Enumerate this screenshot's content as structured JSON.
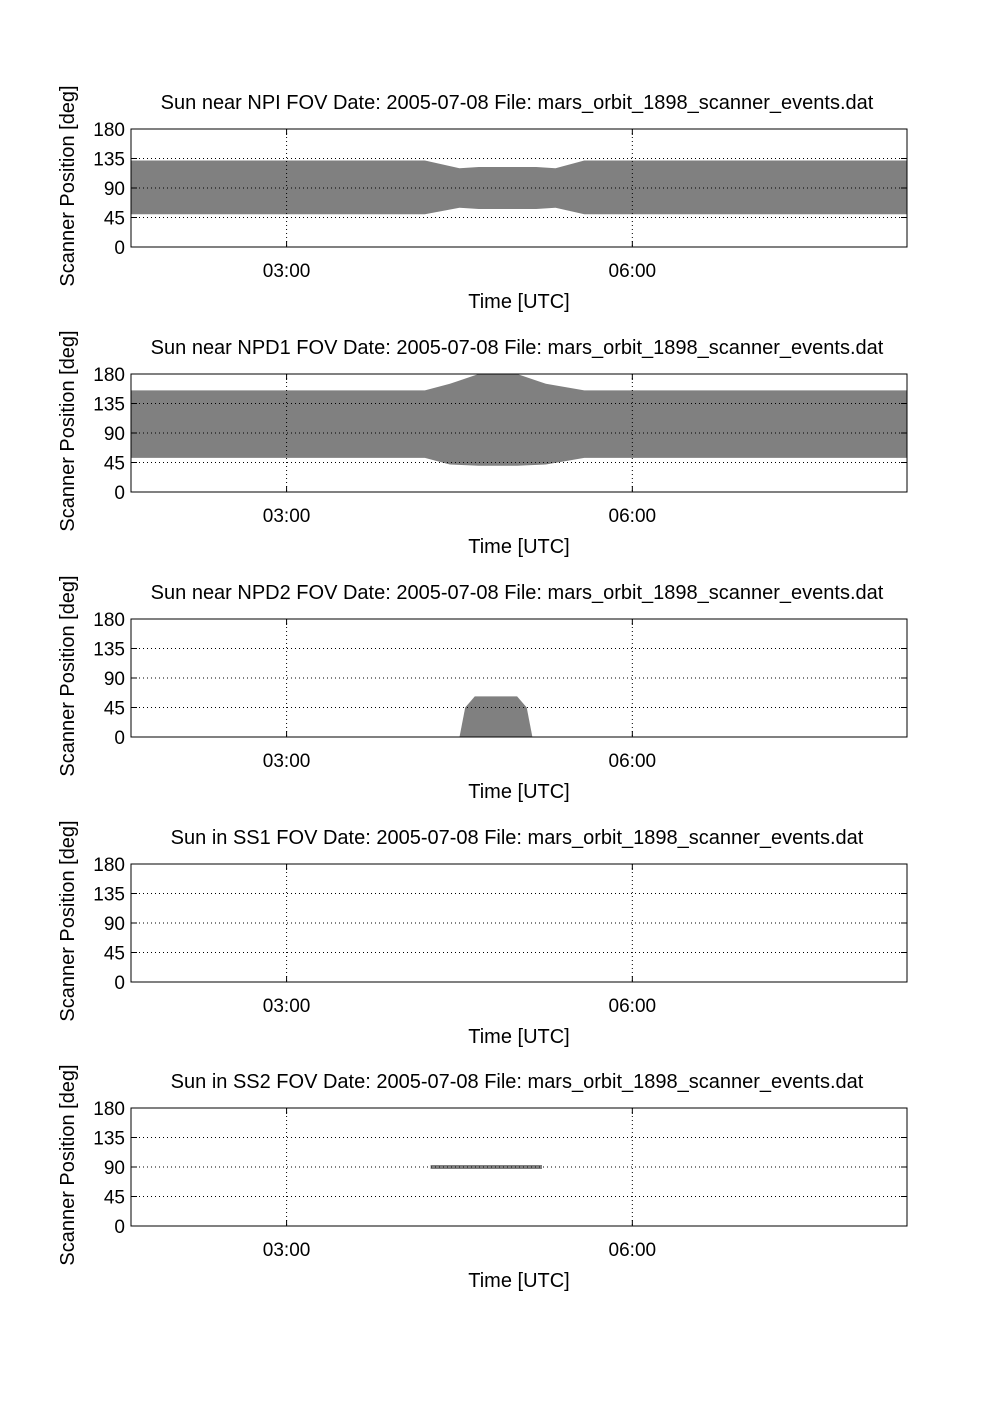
{
  "chart_data": [
    {
      "type": "area",
      "title": "Sun near NPI FOV    Date: 2005-07-08    File: mars_orbit_1898_scanner_events.dat",
      "xlabel": "Time [UTC]",
      "ylabel": "Scanner Position [deg]",
      "xlim": [
        "01:39",
        "08:23"
      ],
      "ylim": [
        0,
        180
      ],
      "xticks": [
        "03:00",
        "06:00"
      ],
      "yticks": [
        "0",
        "45",
        "90",
        "135",
        "180"
      ],
      "grid": true,
      "color": "#808080",
      "series": [
        {
          "x": [
            "01:39",
            "04:12",
            "04:30",
            "04:40",
            "05:10",
            "05:20",
            "05:35",
            "08:23"
          ],
          "lower": [
            50,
            50,
            60,
            58,
            58,
            60,
            50,
            50
          ],
          "upper": [
            132,
            132,
            120,
            122,
            122,
            120,
            132,
            132
          ]
        }
      ]
    },
    {
      "type": "area",
      "title": "Sun near NPD1 FOV    Date: 2005-07-08    File: mars_orbit_1898_scanner_events.dat",
      "xlabel": "Time [UTC]",
      "ylabel": "Scanner Position [deg]",
      "xlim": [
        "01:39",
        "08:23"
      ],
      "ylim": [
        0,
        180
      ],
      "xticks": [
        "03:00",
        "06:00"
      ],
      "yticks": [
        "0",
        "45",
        "90",
        "135",
        "180"
      ],
      "grid": true,
      "color": "#808080",
      "series": [
        {
          "x": [
            "01:39",
            "04:12",
            "04:25",
            "04:40",
            "05:00",
            "05:15",
            "05:35",
            "08:23"
          ],
          "lower": [
            52,
            52,
            42,
            40,
            40,
            42,
            52,
            52
          ],
          "upper": [
            155,
            155,
            165,
            180,
            180,
            165,
            155,
            155
          ]
        }
      ]
    },
    {
      "type": "area",
      "title": "Sun near NPD2 FOV    Date: 2005-07-08    File: mars_orbit_1898_scanner_events.dat",
      "xlabel": "Time [UTC]",
      "ylabel": "Scanner Position [deg]",
      "xlim": [
        "01:39",
        "08:23"
      ],
      "ylim": [
        0,
        180
      ],
      "xticks": [
        "03:00",
        "06:00"
      ],
      "yticks": [
        "0",
        "45",
        "90",
        "135",
        "180"
      ],
      "grid": true,
      "color": "#808080",
      "series": [
        {
          "x": [
            "04:30",
            "04:33",
            "04:38",
            "05:00",
            "05:05",
            "05:08"
          ],
          "lower": [
            0,
            0,
            0,
            0,
            0,
            0
          ],
          "upper": [
            0,
            45,
            62,
            62,
            45,
            0
          ]
        }
      ]
    },
    {
      "type": "area",
      "title": "Sun in SS1 FOV    Date: 2005-07-08    File: mars_orbit_1898_scanner_events.dat",
      "xlabel": "Time [UTC]",
      "ylabel": "Scanner Position [deg]",
      "xlim": [
        "01:39",
        "08:23"
      ],
      "ylim": [
        0,
        180
      ],
      "xticks": [
        "03:00",
        "06:00"
      ],
      "yticks": [
        "0",
        "45",
        "90",
        "135",
        "180"
      ],
      "grid": true,
      "color": "#808080",
      "series": []
    },
    {
      "type": "area",
      "title": "Sun in SS2 FOV    Date: 2005-07-08    File: mars_orbit_1898_scanner_events.dat",
      "xlabel": "Time [UTC]",
      "ylabel": "Scanner Position [deg]",
      "xlim": [
        "01:39",
        "08:23"
      ],
      "ylim": [
        0,
        180
      ],
      "xticks": [
        "03:00",
        "06:00"
      ],
      "yticks": [
        "0",
        "45",
        "90",
        "135",
        "180"
      ],
      "grid": true,
      "color": "#808080",
      "series": [
        {
          "x": [
            "04:15",
            "05:13"
          ],
          "lower": [
            87,
            87
          ],
          "upper": [
            93,
            93
          ]
        }
      ]
    }
  ]
}
